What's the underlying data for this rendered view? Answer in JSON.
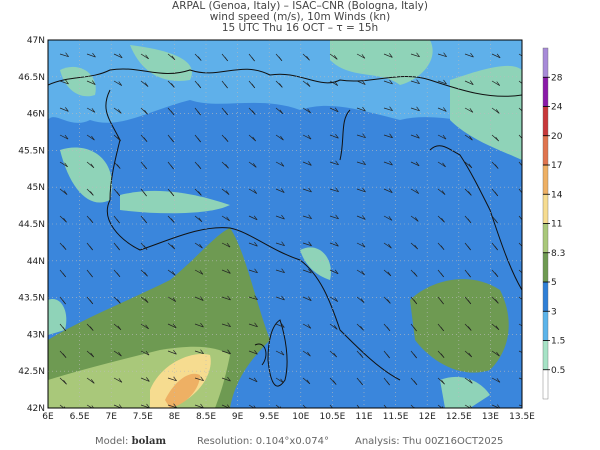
{
  "header": {
    "line1": "ARPAL (Genoa, Italy)  –  ISAC–CNR (Bologna, Italy)",
    "line2": "wind speed (m/s), 10m Winds (kn)",
    "line3": "15 UTC Thu 16 OCT  –  τ = 15h"
  },
  "map": {
    "lon_labels": [
      "6E",
      "6.5E",
      "7E",
      "7.5E",
      "8E",
      "8.5E",
      "9E",
      "9.5E",
      "10E",
      "10.5E",
      "11E",
      "11.5E",
      "12E",
      "12.5E",
      "13E",
      "13.5E"
    ],
    "lat_labels": [
      "47N",
      "46.5N",
      "46N",
      "45.5N",
      "45N",
      "44.5N",
      "44N",
      "43.5N",
      "43N",
      "42.5N",
      "42N"
    ]
  },
  "colorbar": {
    "levels": [
      "0.5",
      "1.5",
      "3",
      "5",
      "8.3",
      "11",
      "14",
      "17",
      "20",
      "24",
      "28"
    ],
    "colors": [
      "#ffffff",
      "#a6e3c6",
      "#5bb4ea",
      "#2f7fd6",
      "#6e9a52",
      "#a9c87a",
      "#f6dc90",
      "#eeb064",
      "#e0744e",
      "#c8383a",
      "#8a1aa8",
      "#a78ad8"
    ]
  },
  "footer": {
    "model_label": "Model:",
    "model": "bolam",
    "resolution": "Resolution: 0.104°x0.074°",
    "analysis": "Analysis: Thu 00Z16OCT2025"
  }
}
